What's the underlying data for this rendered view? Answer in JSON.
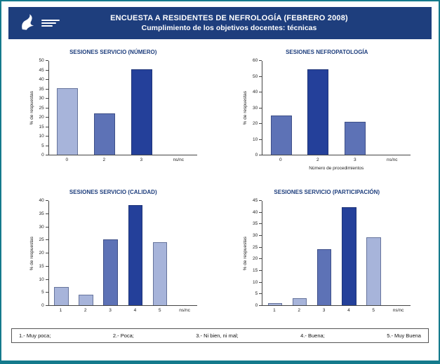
{
  "header": {
    "title": "ENCUESTA A RESIDENTES DE NEFROLOGÍA (FEBRERO 2008)",
    "subtitle": "Cumplimiento de los objetivos docentes: técnicas"
  },
  "colors": {
    "light": "#a7b4da",
    "medium": "#5d72b6",
    "dark": "#24409a",
    "header_bg": "#1e3e7d",
    "frame": "#147a8c"
  },
  "legend": {
    "items": [
      "1.- Muy poca;",
      "2.- Poca;",
      "3.- Ni bien, ni mal;",
      "4.- Buena;",
      "5.- Muy Buena"
    ]
  },
  "chart_data": [
    {
      "type": "bar",
      "title": "SESIONES SERVICIO (NÚMERO)",
      "ylabel": "% de respuestas",
      "xlabel": "",
      "ylim": [
        0,
        50
      ],
      "ystep": 5,
      "categories": [
        "0",
        "2",
        "3",
        "ns/nc"
      ],
      "values": [
        35,
        22,
        45,
        0
      ],
      "bar_colors": [
        "light",
        "medium",
        "dark",
        "light"
      ]
    },
    {
      "type": "bar",
      "title": "SESIONES NEFROPATOLOGÍA",
      "ylabel": "% de respuestas",
      "xlabel": "Número de procedimientos",
      "ylim": [
        0,
        60
      ],
      "ystep": 10,
      "categories": [
        "0",
        "2",
        "3",
        "ns/nc"
      ],
      "values": [
        25,
        54,
        21,
        0
      ],
      "bar_colors": [
        "medium",
        "dark",
        "medium",
        "light"
      ]
    },
    {
      "type": "bar",
      "title": "SESIONES SERVICIO (CALIDAD)",
      "ylabel": "% de respuestas",
      "xlabel": "",
      "ylim": [
        0,
        40
      ],
      "ystep": 5,
      "categories": [
        "1",
        "2",
        "3",
        "4",
        "5",
        "ns/nc"
      ],
      "values": [
        7,
        4,
        25,
        38,
        24,
        0
      ],
      "bar_colors": [
        "light",
        "light",
        "medium",
        "dark",
        "light",
        "light"
      ]
    },
    {
      "type": "bar",
      "title": "SESIONES SERVICIO (PARTICIPACIÓN)",
      "ylabel": "% de respuestas",
      "xlabel": "",
      "ylim": [
        0,
        45
      ],
      "ystep": 5,
      "categories": [
        "1",
        "2",
        "3",
        "4",
        "5",
        "ns/nc"
      ],
      "values": [
        1,
        3,
        24,
        42,
        29,
        0
      ],
      "bar_colors": [
        "light",
        "light",
        "medium",
        "dark",
        "light",
        "light"
      ]
    }
  ]
}
